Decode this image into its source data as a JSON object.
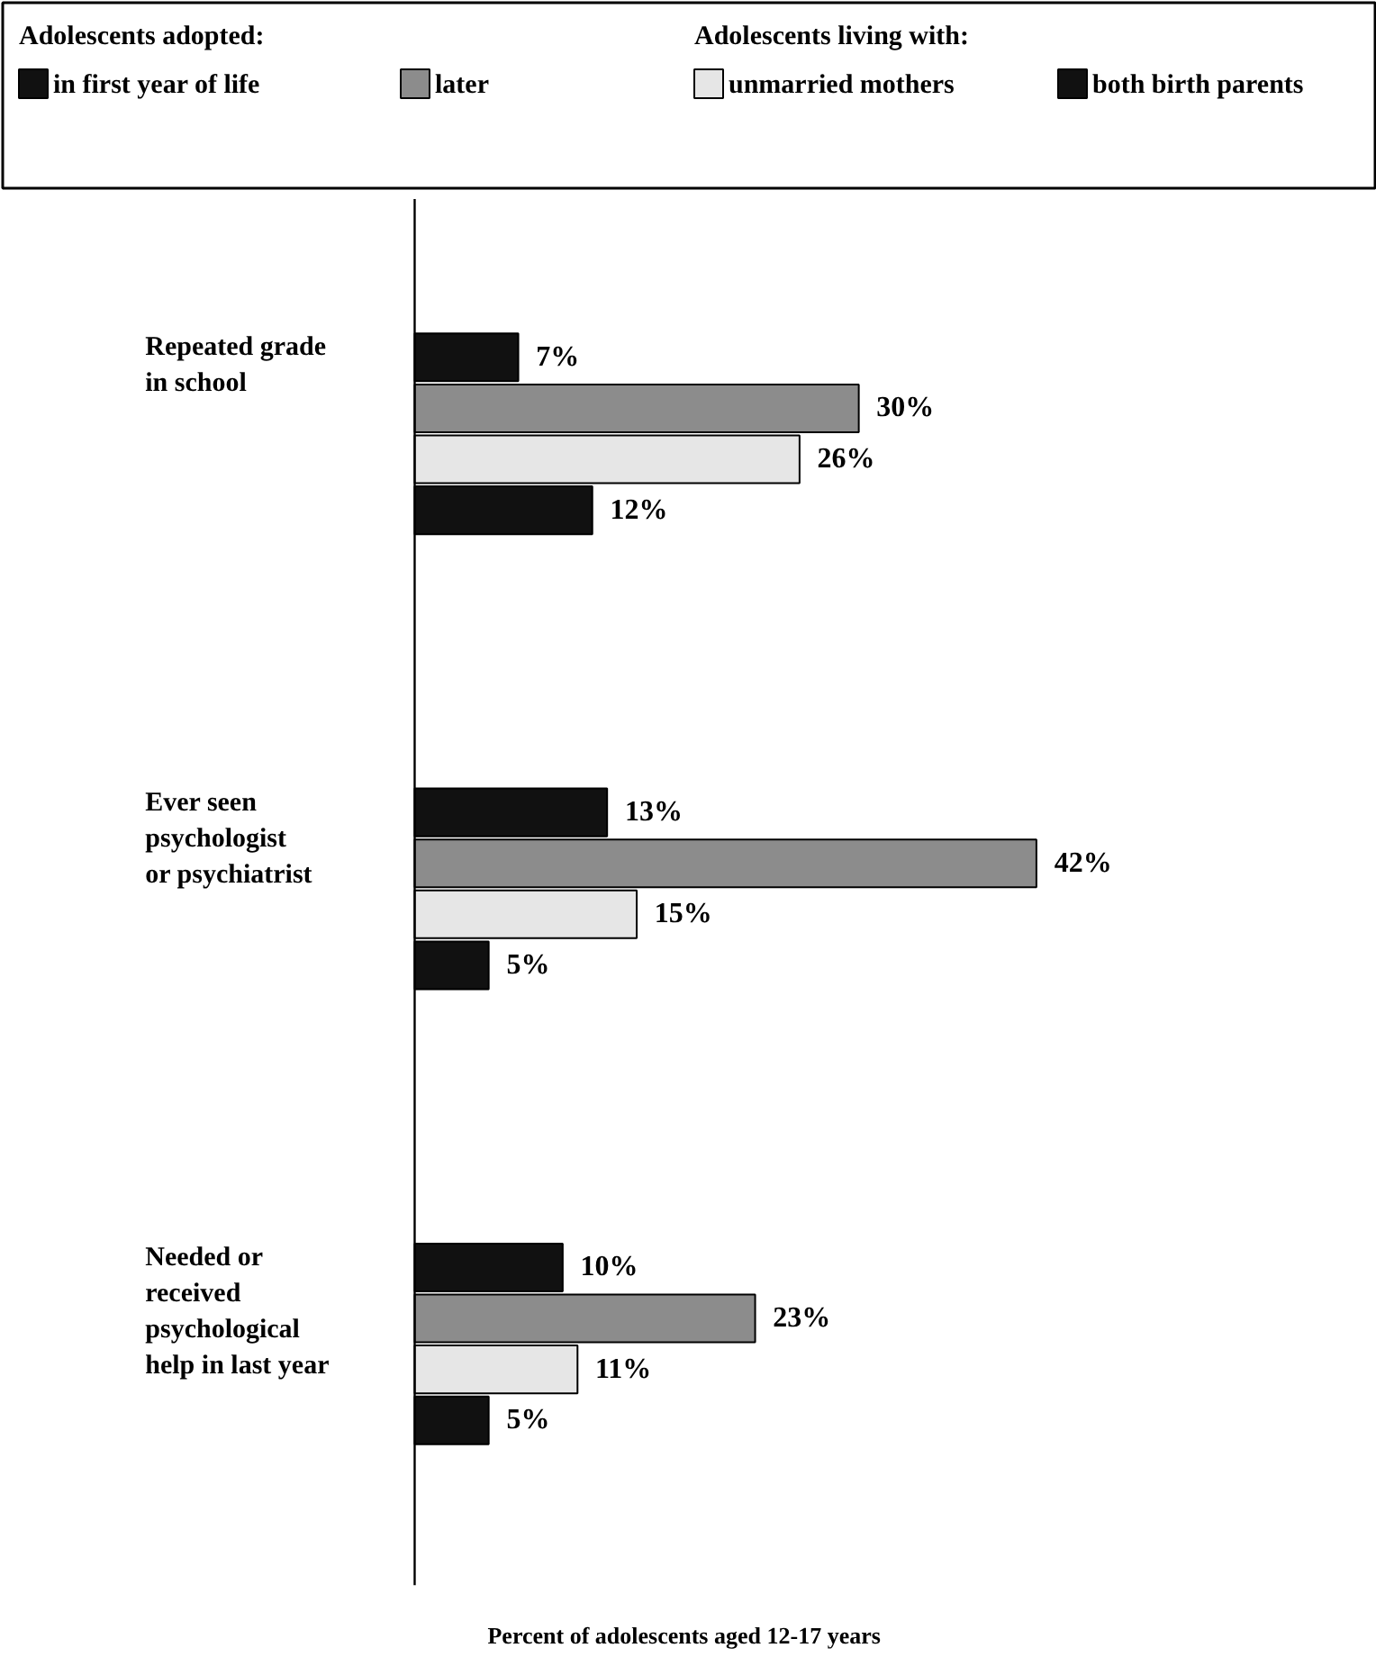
{
  "chart_data": {
    "type": "bar",
    "orientation": "horizontal",
    "categories": [
      "Repeated grade\nin school",
      "Ever seen\npsychologist\nor psychiatrist",
      "Needed or\nreceived\npsychological\nhelp in last year"
    ],
    "series": [
      {
        "name": "in first year of life",
        "color": "#111111",
        "values": [
          7,
          13,
          10
        ],
        "value_labels": [
          "7%",
          "13%",
          "10%"
        ]
      },
      {
        "name": "later",
        "color": "#8c8c8c",
        "values": [
          30,
          42,
          23
        ],
        "value_labels": [
          "30%",
          "42%",
          "23%"
        ]
      },
      {
        "name": "unmarried mothers",
        "color": "#e6e6e6",
        "values": [
          26,
          15,
          11
        ],
        "value_labels": [
          "26%",
          "15%",
          "11%"
        ]
      },
      {
        "name": "both birth parents",
        "color": "#111111",
        "values": [
          12,
          5,
          5
        ],
        "value_labels": [
          "12%",
          "5%",
          "5%"
        ]
      }
    ],
    "xlabel": "Percent of adolescents aged 12-17 years",
    "annotations": [
      "Adolescents adopted:",
      "Adolescents living with:"
    ],
    "xlim": [
      0,
      65
    ],
    "tick_labels": false,
    "grid": false,
    "legend": "top"
  }
}
